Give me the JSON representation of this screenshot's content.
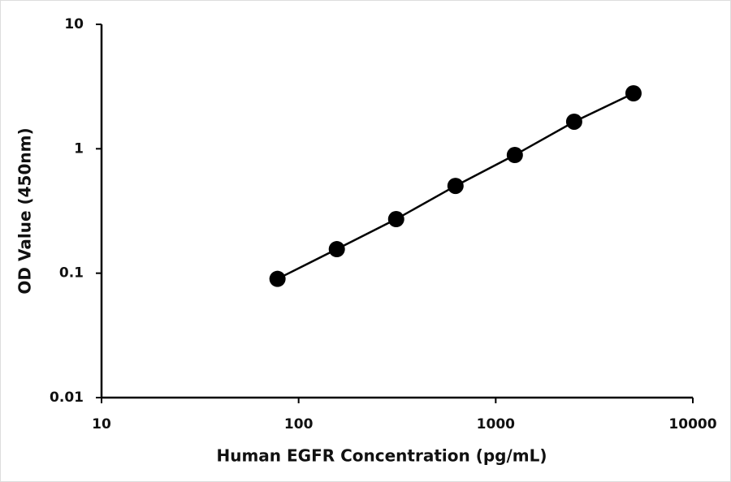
{
  "chart_data": {
    "type": "line",
    "x_label": "Human EGFR Concentration (pg/mL)",
    "y_label": "OD Value (450nm)",
    "x": [
      78.125,
      156.25,
      312.5,
      625,
      1250,
      2500,
      5000
    ],
    "values": [
      0.09,
      0.156,
      0.272,
      0.503,
      0.891,
      1.65,
      2.79
    ],
    "color": "#000000",
    "markers": true,
    "xlog": true,
    "ylog": true,
    "xlim": [
      10,
      10000
    ],
    "ylim": [
      0.01,
      10
    ],
    "xticks": [
      10,
      100,
      1000,
      10000
    ],
    "yticks": [
      0.01,
      0.1,
      1,
      10
    ]
  }
}
